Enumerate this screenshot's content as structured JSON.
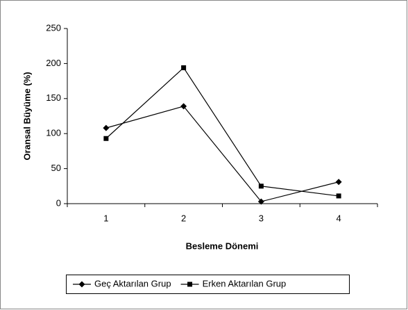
{
  "chart_data": {
    "type": "line",
    "x_label": "Besleme Dönemi",
    "y_label": "Oransal Büyüme (%)",
    "categories": [
      "1",
      "2",
      "3",
      "4"
    ],
    "series": [
      {
        "name": "Geç Aktarılan Grup",
        "color": "#000000",
        "marker": "diamond",
        "values": [
          108,
          139,
          3,
          31
        ]
      },
      {
        "name": "Erken Aktarılan Grup",
        "color": "#000000",
        "marker": "square",
        "values": [
          93,
          194,
          25,
          11
        ]
      }
    ],
    "ylim": [
      0,
      250
    ],
    "yticks": [
      0,
      50,
      100,
      150,
      200,
      250
    ],
    "grid": false,
    "legend": "bottom"
  }
}
